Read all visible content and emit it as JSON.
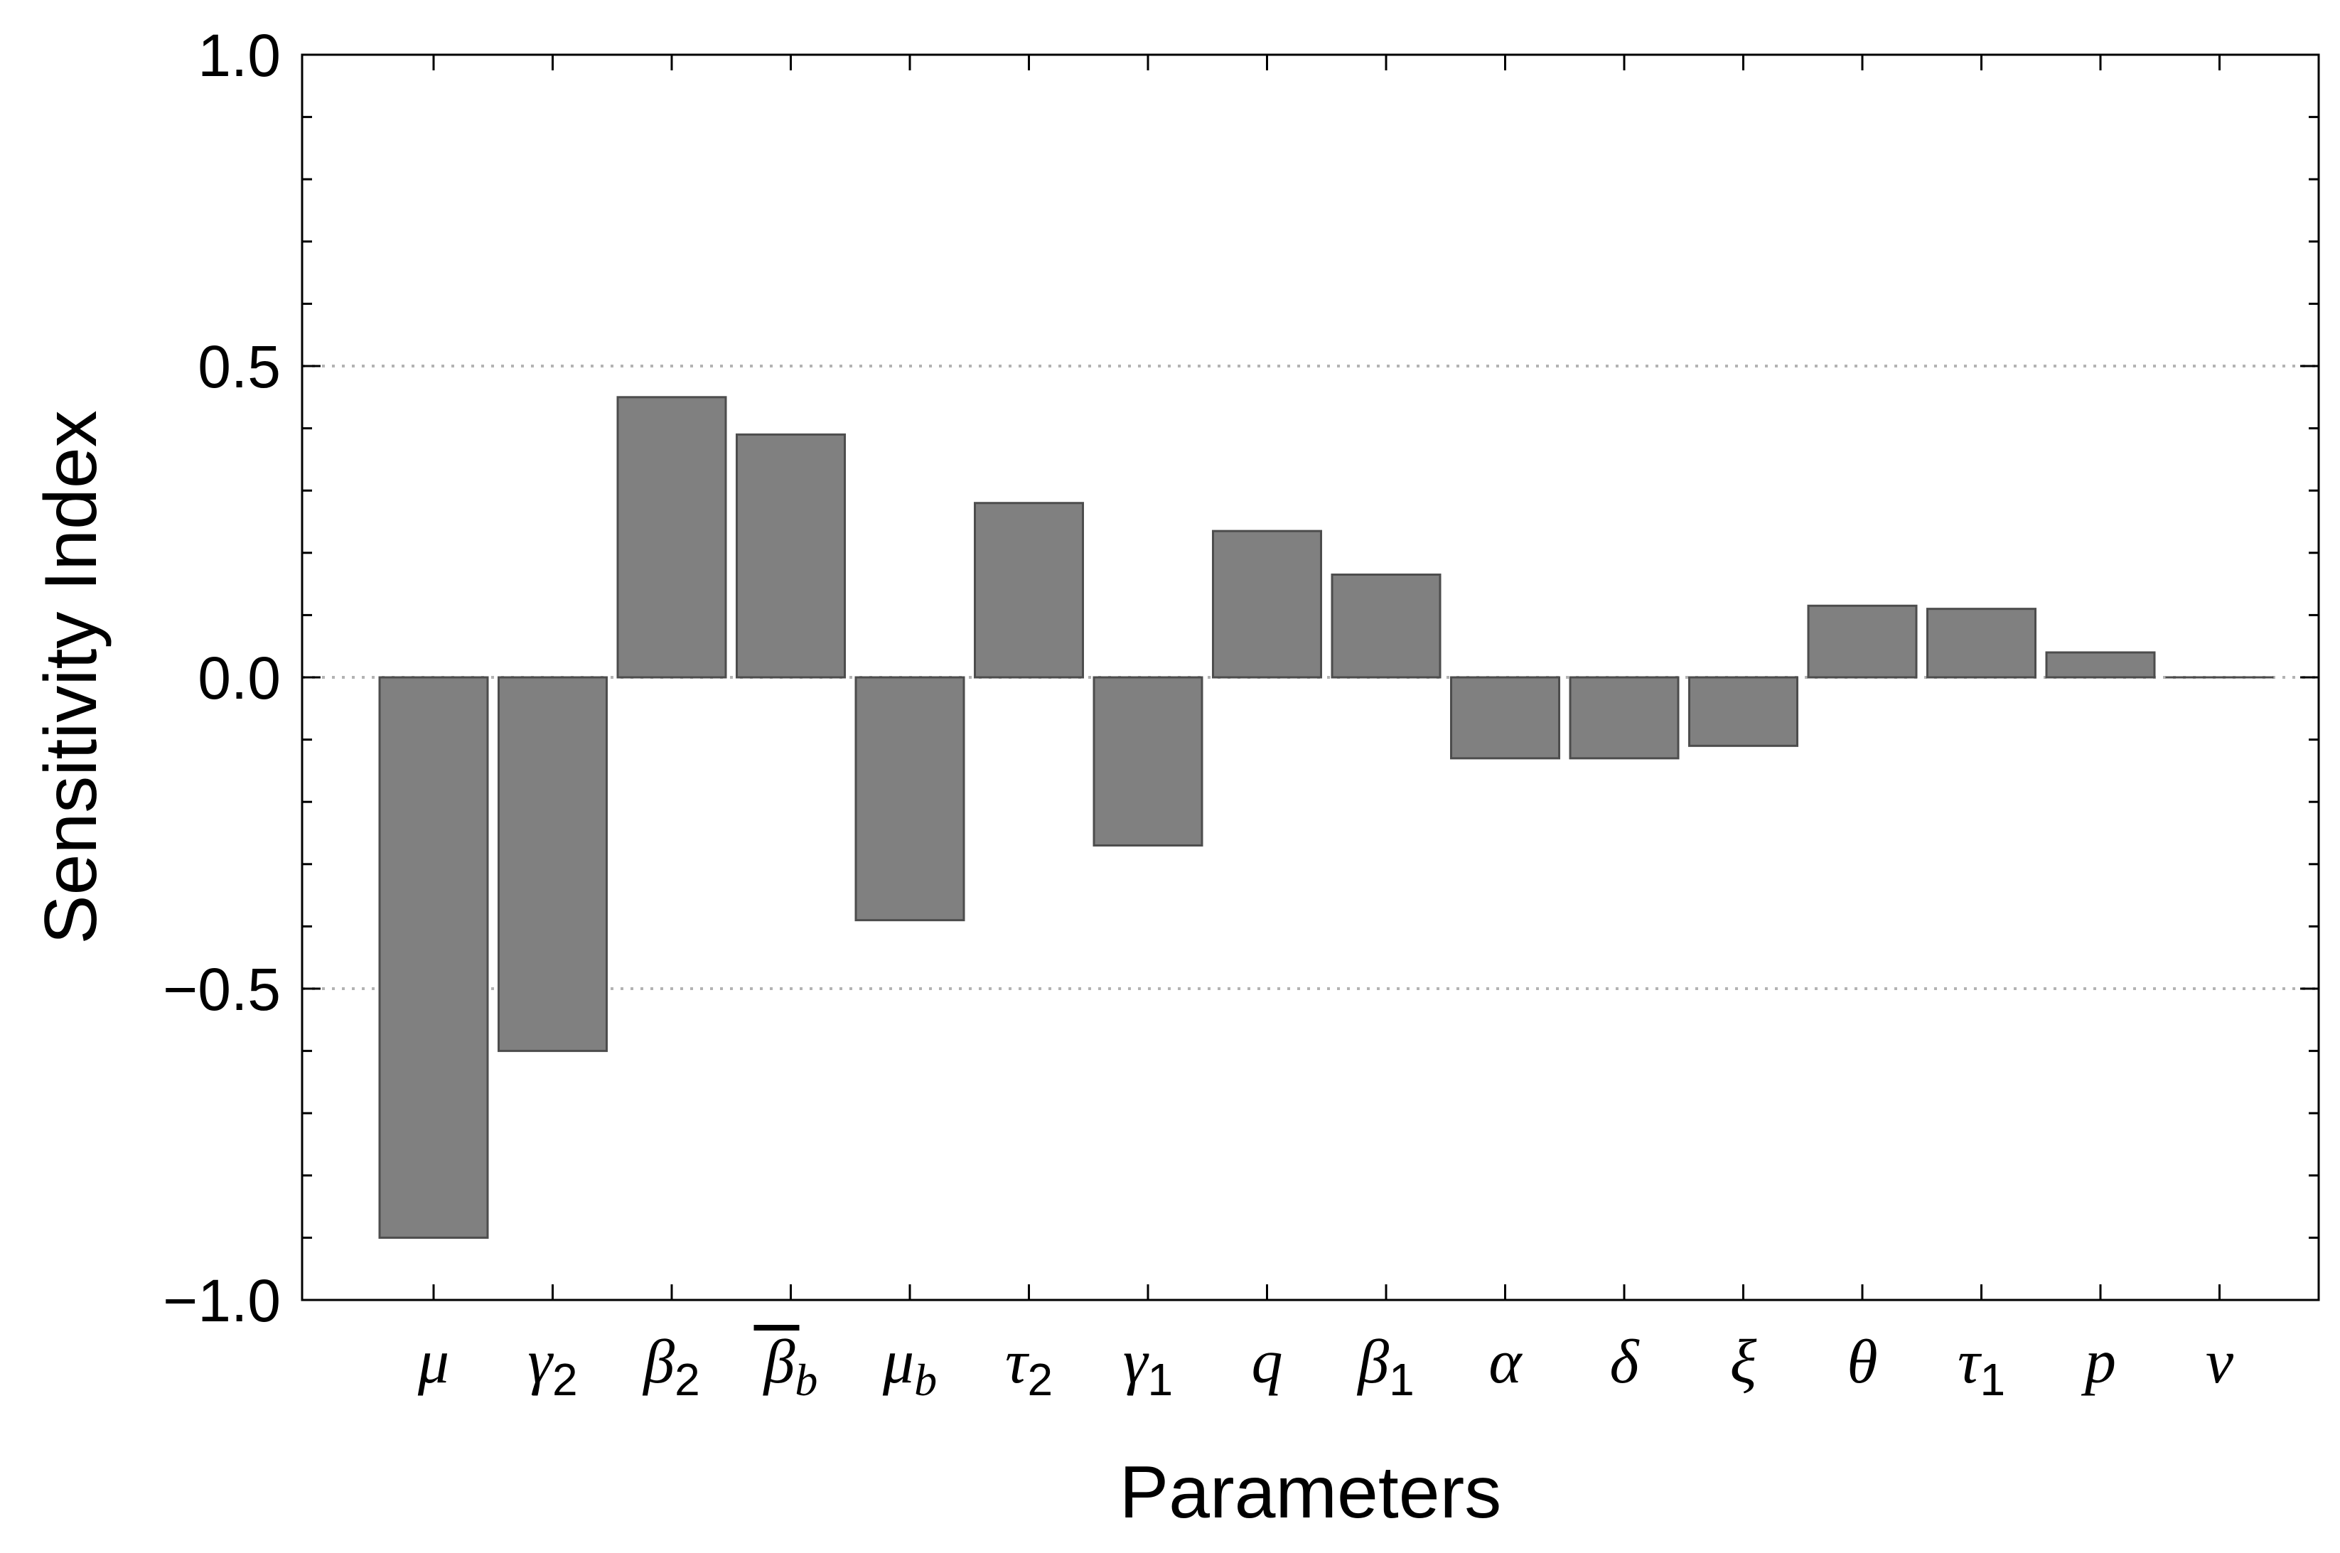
{
  "chart_data": {
    "type": "bar",
    "title": "",
    "xlabel": "Parameters",
    "ylabel": "Sensitivity Index",
    "ylim": [
      -1.0,
      1.0
    ],
    "yticks": [
      -1.0,
      -0.5,
      0.0,
      0.5,
      1.0
    ],
    "ytick_labels": [
      "−1.0",
      "−0.5",
      "0.0",
      "0.5",
      "1.0"
    ],
    "grid": "dotted horizontal lines at -0.5, 0.0 and 0.5",
    "categories": [
      {
        "base": "μ",
        "sub": ""
      },
      {
        "base": "γ",
        "sub": "2"
      },
      {
        "base": "β",
        "sub": "2"
      },
      {
        "base": "β",
        "sub": "b",
        "bar": true
      },
      {
        "base": "μ",
        "sub": "b"
      },
      {
        "base": "τ",
        "sub": "2"
      },
      {
        "base": "γ",
        "sub": "1"
      },
      {
        "base": "q",
        "sub": ""
      },
      {
        "base": "β",
        "sub": "1"
      },
      {
        "base": "α",
        "sub": ""
      },
      {
        "base": "δ",
        "sub": ""
      },
      {
        "base": "ξ",
        "sub": ""
      },
      {
        "base": "θ",
        "sub": ""
      },
      {
        "base": "τ",
        "sub": "1"
      },
      {
        "base": "p",
        "sub": ""
      },
      {
        "base": "ν",
        "sub": ""
      }
    ],
    "values": [
      -0.9,
      -0.6,
      0.45,
      0.39,
      -0.39,
      0.28,
      -0.27,
      0.235,
      0.165,
      -0.13,
      -0.13,
      -0.11,
      0.115,
      0.11,
      0.04,
      0.0
    ],
    "colors": {
      "bar_fill": "#808080",
      "bar_stroke": "#4d4d4d",
      "grid": "#b3b3b3",
      "axis": "#000000"
    }
  }
}
